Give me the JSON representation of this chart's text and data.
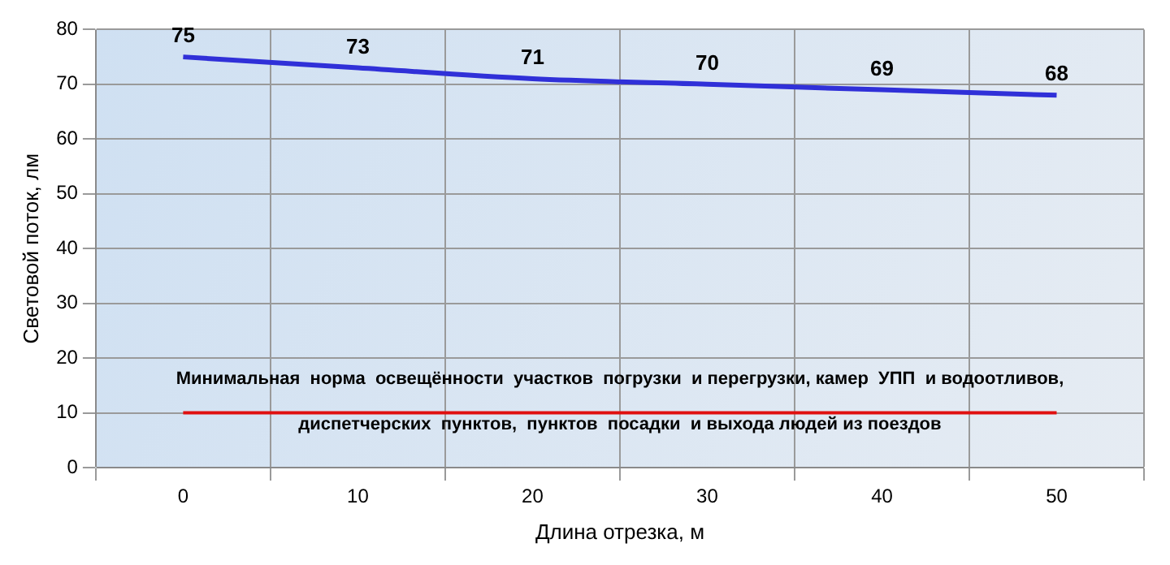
{
  "chart_data": {
    "type": "line",
    "xlabel": "Длина отрезка, м",
    "ylabel": "Световой поток, лм",
    "categories": [
      "0",
      "10",
      "20",
      "30",
      "40",
      "50"
    ],
    "series": [
      {
        "color": "#3030d8",
        "values": [
          75,
          73,
          71,
          70,
          69,
          68
        ]
      }
    ],
    "ylim": [
      0,
      80
    ],
    "yticks": [
      0,
      10,
      20,
      30,
      40,
      50,
      60,
      70,
      80
    ],
    "grid": true,
    "legend": false,
    "marker": "none",
    "line_style": "solid",
    "data_labels": true,
    "ref_lines": [
      {
        "axis": "y",
        "value": 10,
        "color": "#e01010",
        "label": "Минимальная  норма  освещённости  участков  погрузки  и перегрузки, камер  УПП  и водоотливов,\nдиспетчерских  пунктов,  пунктов  посадки  и выхода людей из поездов"
      }
    ]
  }
}
